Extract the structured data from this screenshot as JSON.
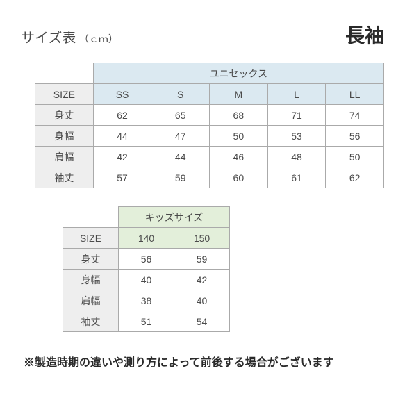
{
  "header": {
    "title": "サイズ表",
    "unit": "（ｃｍ）",
    "right": "長袖"
  },
  "unisex": {
    "group_label": "ユニセックス",
    "size_label": "SIZE",
    "sizes": [
      "SS",
      "S",
      "M",
      "L",
      "LL"
    ],
    "rows": [
      {
        "label": "身丈",
        "values": [
          62,
          65,
          68,
          71,
          74
        ]
      },
      {
        "label": "身幅",
        "values": [
          44,
          47,
          50,
          53,
          56
        ]
      },
      {
        "label": "肩幅",
        "values": [
          42,
          44,
          46,
          48,
          50
        ]
      },
      {
        "label": "袖丈",
        "values": [
          57,
          59,
          60,
          61,
          62
        ]
      }
    ],
    "group_bg": "#dbe9f1",
    "head_bg": "#eeeeee"
  },
  "kids": {
    "group_label": "キッズサイズ",
    "size_label": "SIZE",
    "sizes": [
      140,
      150
    ],
    "rows": [
      {
        "label": "身丈",
        "values": [
          56,
          59
        ]
      },
      {
        "label": "身幅",
        "values": [
          40,
          42
        ]
      },
      {
        "label": "肩幅",
        "values": [
          38,
          40
        ]
      },
      {
        "label": "袖丈",
        "values": [
          51,
          54
        ]
      }
    ],
    "group_bg": "#e3efda",
    "head_bg": "#eeeeee"
  },
  "footnote": "※製造時期の違いや測り方によって前後する場合がございます",
  "style": {
    "border_color": "#aaaaaa",
    "text_color": "#4a4a4a",
    "bg": "#ffffff",
    "font": "Hiragino Sans"
  }
}
